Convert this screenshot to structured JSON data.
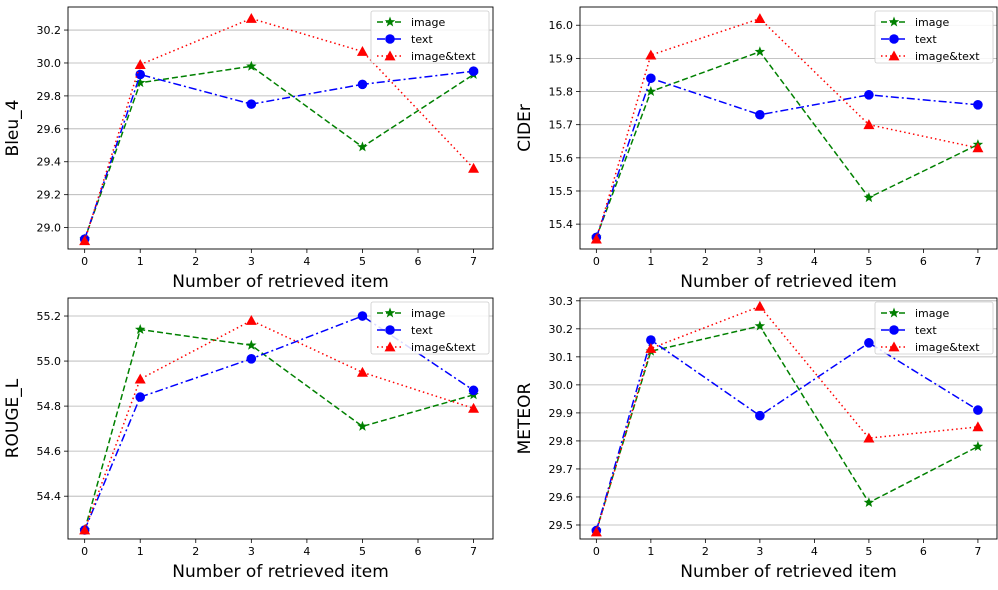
{
  "chart_data": [
    {
      "type": "line",
      "title": "",
      "xlabel": "Number of retrieved item",
      "ylabel": "Bleu_4",
      "x": [
        0,
        1,
        3,
        5,
        7
      ],
      "xlim": [
        -0.3,
        7.35
      ],
      "xticks": [
        0,
        1,
        2,
        3,
        4,
        5,
        6,
        7
      ],
      "ylim": [
        28.87,
        30.34
      ],
      "yticks": [
        29.0,
        29.2,
        29.4,
        29.6,
        29.8,
        30.0,
        30.2
      ],
      "ytick_decimals": 1,
      "grid": "horizontal",
      "legend": "top-right",
      "series": [
        {
          "name": "image",
          "values": [
            28.93,
            29.88,
            29.98,
            29.49,
            29.93
          ],
          "color": "#008000",
          "dash": "dashed",
          "marker": "star"
        },
        {
          "name": "text",
          "values": [
            28.93,
            29.93,
            29.75,
            29.87,
            29.95
          ],
          "color": "#0000ff",
          "dash": "dashdot",
          "marker": "circle"
        },
        {
          "name": "image&text",
          "values": [
            28.92,
            29.99,
            30.27,
            30.07,
            29.36
          ],
          "color": "#ff0000",
          "dash": "dotted",
          "marker": "triangle"
        }
      ]
    },
    {
      "type": "line",
      "title": "",
      "xlabel": "Number of retrieved item",
      "ylabel": "CIDEr",
      "x": [
        0,
        1,
        3,
        5,
        7
      ],
      "xlim": [
        -0.3,
        7.35
      ],
      "xticks": [
        0,
        1,
        2,
        3,
        4,
        5,
        6,
        7
      ],
      "ylim": [
        15.325,
        16.055
      ],
      "yticks": [
        15.4,
        15.5,
        15.6,
        15.7,
        15.8,
        15.9,
        16.0
      ],
      "ytick_decimals": 1,
      "grid": "horizontal",
      "legend": "top-right",
      "series": [
        {
          "name": "image",
          "values": [
            15.36,
            15.8,
            15.92,
            15.48,
            15.64
          ],
          "color": "#008000",
          "dash": "dashed",
          "marker": "star"
        },
        {
          "name": "text",
          "values": [
            15.36,
            15.84,
            15.73,
            15.79,
            15.76
          ],
          "color": "#0000ff",
          "dash": "dashdot",
          "marker": "circle"
        },
        {
          "name": "image&text",
          "values": [
            15.355,
            15.91,
            16.02,
            15.7,
            15.63
          ],
          "color": "#ff0000",
          "dash": "dotted",
          "marker": "triangle"
        }
      ]
    },
    {
      "type": "line",
      "title": "",
      "xlabel": "Number of retrieved item",
      "ylabel": "ROUGE_L",
      "x": [
        0,
        1,
        3,
        5,
        7
      ],
      "xlim": [
        -0.3,
        7.35
      ],
      "xticks": [
        0,
        1,
        2,
        3,
        4,
        5,
        6,
        7
      ],
      "ylim": [
        54.21,
        55.28
      ],
      "yticks": [
        54.4,
        54.6,
        54.8,
        55.0,
        55.2
      ],
      "ytick_decimals": 1,
      "grid": "horizontal",
      "legend": "top-right",
      "series": [
        {
          "name": "image",
          "values": [
            54.25,
            55.14,
            55.07,
            54.71,
            54.85
          ],
          "color": "#008000",
          "dash": "dashed",
          "marker": "star"
        },
        {
          "name": "text",
          "values": [
            54.25,
            54.84,
            55.01,
            55.2,
            54.87
          ],
          "color": "#0000ff",
          "dash": "dashdot",
          "marker": "circle"
        },
        {
          "name": "image&text",
          "values": [
            54.25,
            54.92,
            55.18,
            54.95,
            54.79
          ],
          "color": "#ff0000",
          "dash": "dotted",
          "marker": "triangle"
        }
      ]
    },
    {
      "type": "line",
      "title": "",
      "xlabel": "Number of retrieved item",
      "ylabel": "METEOR",
      "x": [
        0,
        1,
        3,
        5,
        7
      ],
      "xlim": [
        -0.3,
        7.35
      ],
      "xticks": [
        0,
        1,
        2,
        3,
        4,
        5,
        6,
        7
      ],
      "ylim": [
        29.45,
        30.31
      ],
      "yticks": [
        29.5,
        29.6,
        29.7,
        29.8,
        29.9,
        30.0,
        30.1,
        30.2,
        30.3
      ],
      "ytick_decimals": 1,
      "grid": "horizontal",
      "legend": "top-right",
      "series": [
        {
          "name": "image",
          "values": [
            29.48,
            30.12,
            30.21,
            29.58,
            29.78
          ],
          "color": "#008000",
          "dash": "dashed",
          "marker": "star"
        },
        {
          "name": "text",
          "values": [
            29.48,
            30.16,
            29.89,
            30.15,
            29.91
          ],
          "color": "#0000ff",
          "dash": "dashdot",
          "marker": "circle"
        },
        {
          "name": "image&text",
          "values": [
            29.475,
            30.13,
            30.28,
            29.81,
            29.85
          ],
          "color": "#ff0000",
          "dash": "dotted",
          "marker": "triangle"
        }
      ]
    }
  ]
}
